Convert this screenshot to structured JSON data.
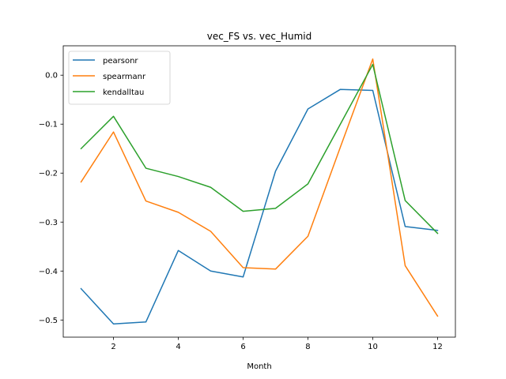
{
  "chart_data": {
    "type": "line",
    "title": "vec_FS vs. vec_Humid",
    "xlabel": "Month",
    "ylabel": "",
    "x": [
      1,
      2,
      3,
      4,
      5,
      6,
      7,
      8,
      9,
      10,
      11,
      12
    ],
    "xlim": [
      0.45,
      12.55
    ],
    "ylim": [
      -0.535,
      0.06
    ],
    "xticks": [
      2,
      4,
      6,
      8,
      10,
      12
    ],
    "xtick_labels": [
      "2",
      "4",
      "6",
      "8",
      "10",
      "12"
    ],
    "yticks": [
      -0.5,
      -0.4,
      -0.3,
      -0.2,
      -0.1,
      0.0
    ],
    "ytick_labels": [
      "−0.5",
      "−0.4",
      "−0.3",
      "−0.2",
      "−0.1",
      "0.0"
    ],
    "grid": false,
    "legend_position": "top-left",
    "series": [
      {
        "name": "pearsonr",
        "color": "#1f77b4",
        "values": [
          -0.436,
          -0.508,
          -0.504,
          -0.358,
          -0.4,
          -0.412,
          -0.196,
          -0.069,
          -0.029,
          -0.031,
          -0.309,
          -0.317
        ]
      },
      {
        "name": "spearmanr",
        "color": "#ff7f0e",
        "values": [
          -0.218,
          -0.116,
          -0.257,
          -0.28,
          -0.319,
          -0.393,
          -0.396,
          -0.329,
          -0.147,
          0.033,
          -0.389,
          -0.492
        ]
      },
      {
        "name": "kendalltau",
        "color": "#2ca02c",
        "values": [
          -0.15,
          -0.084,
          -0.19,
          -0.207,
          -0.229,
          -0.278,
          -0.272,
          -0.222,
          -0.1,
          0.022,
          -0.256,
          -0.323
        ]
      }
    ]
  }
}
